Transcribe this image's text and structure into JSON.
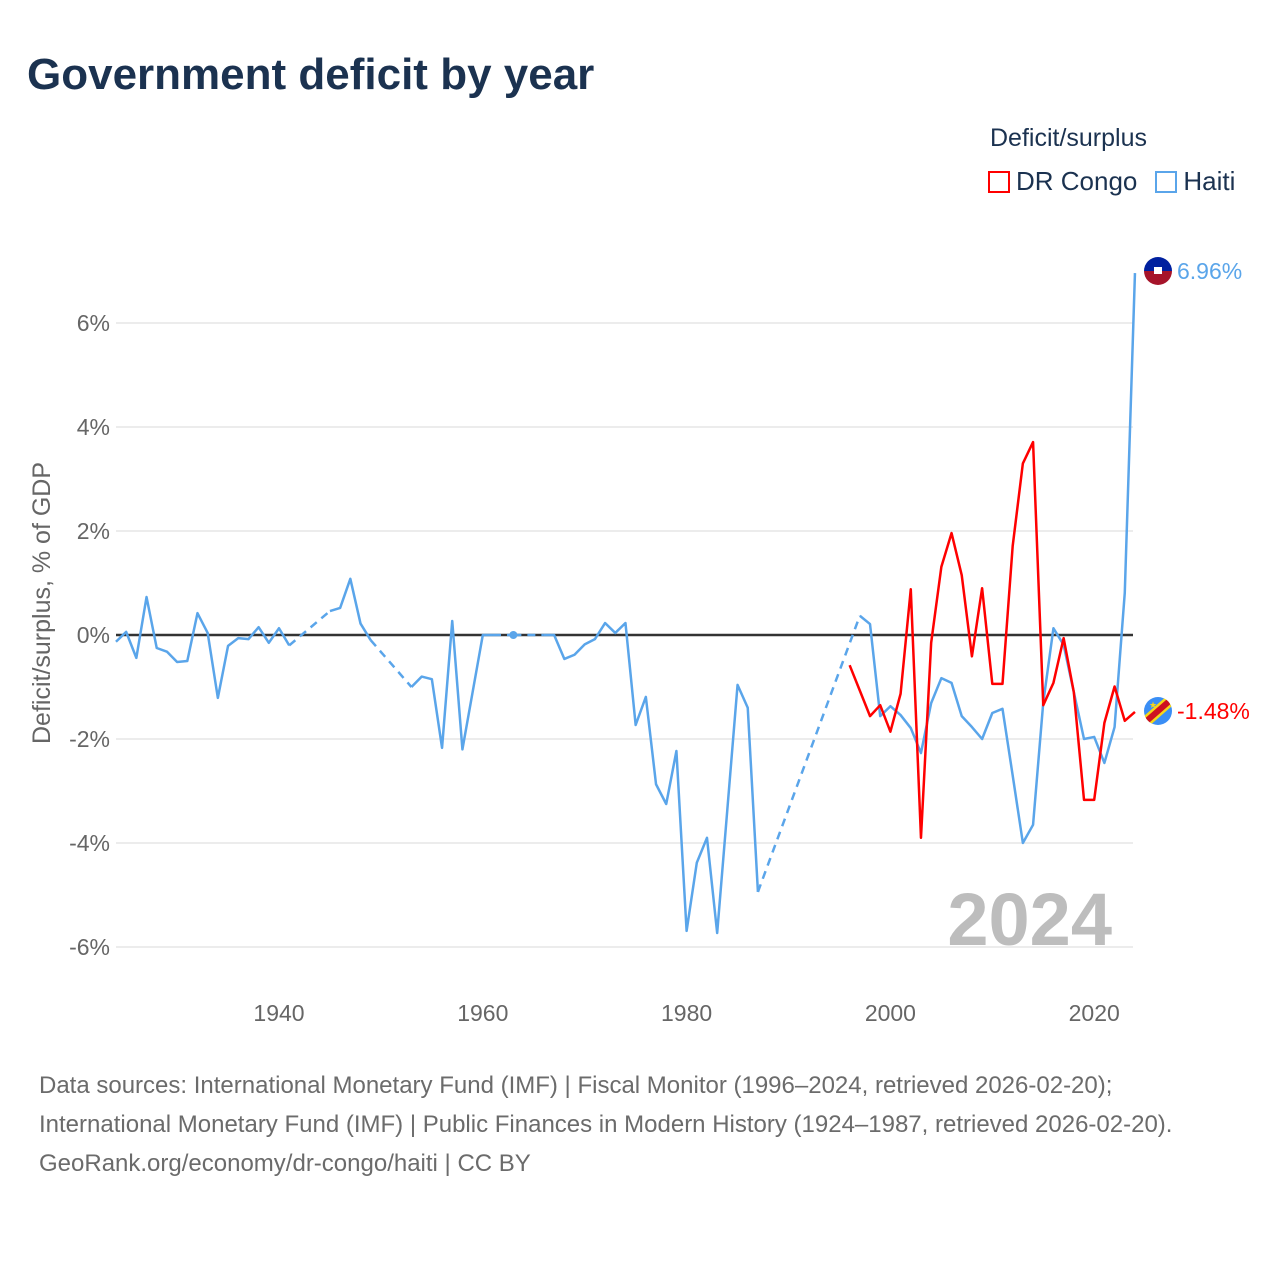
{
  "title": "Government deficit by year",
  "legend": {
    "title": "Deficit/surplus",
    "items": [
      {
        "label": "DR Congo",
        "color": "#ff0000"
      },
      {
        "label": "Haiti",
        "color": "#5aa5ea"
      }
    ]
  },
  "year_label": "2024",
  "end_labels": {
    "haiti": "6.96%",
    "drc": "-1.48%"
  },
  "footer": {
    "sources": "Data sources: International Monetary Fund (IMF) | Fiscal Monitor (1996–2024, retrieved 2026-02-20); International Monetary Fund (IMF) | Public Finances in Modern History (1924–1987, retrieved 2026-02-20).",
    "credit": "GeoRank.org/economy/dr-congo/haiti | CC BY"
  },
  "chart_data": {
    "type": "line",
    "title": "Government deficit by year",
    "xlabel": "",
    "ylabel": "Deficit/surplus, % of GDP",
    "xlim": [
      1924,
      2024
    ],
    "ylim": [
      -7,
      7
    ],
    "xticks": [
      1940,
      1960,
      1980,
      2000,
      2020
    ],
    "xtick_labels": [
      "1940",
      "1960",
      "1980",
      "2000",
      "2020"
    ],
    "yticks": [
      -6,
      -4,
      -2,
      0,
      2,
      4,
      6
    ],
    "ytick_labels": [
      "-6%",
      "-4%",
      "-2%",
      "0%",
      "2%",
      "4%",
      "6%"
    ],
    "grid": true,
    "legend_position": "top-right",
    "series": [
      {
        "name": "DR Congo",
        "key": "drc",
        "color": "#ff0000",
        "start_year": 1996,
        "values": [
          -0.58,
          -1.07,
          -1.56,
          -1.35,
          -1.86,
          -1.13,
          0.88,
          -3.9,
          -0.15,
          1.31,
          1.96,
          1.15,
          -0.41,
          0.9,
          -0.94,
          -0.94,
          1.71,
          3.3,
          3.71,
          -1.35,
          -0.92,
          -0.06,
          -1.1,
          -3.17,
          -3.17,
          -1.69,
          -0.99,
          -1.65,
          -1.48
        ]
      },
      {
        "name": "Haiti",
        "key": "haiti",
        "color": "#5aa5ea",
        "start_year": 1924,
        "values": [
          -0.13,
          0.06,
          -0.44,
          0.73,
          -0.25,
          -0.32,
          -0.52,
          -0.5,
          0.42,
          0.04,
          -1.21,
          -0.21,
          -0.06,
          -0.08,
          0.15,
          -0.15,
          0.13,
          -0.2,
          null,
          null,
          null,
          0.46,
          0.52,
          1.08,
          0.22,
          -0.1,
          null,
          null,
          null,
          -1.0,
          -0.8,
          -0.85,
          -2.17,
          0.27,
          -2.2,
          -1.1,
          0.0,
          0.0,
          null,
          0.0,
          null,
          null,
          0.0,
          0.0,
          -0.46,
          -0.38,
          -0.18,
          -0.08,
          0.23,
          0.04,
          0.23,
          -1.73,
          -1.19,
          -2.87,
          -3.25,
          -2.23,
          -5.69,
          -4.38,
          -3.9,
          -5.73,
          -3.35,
          -0.96,
          -1.4,
          -4.94,
          null,
          null,
          null,
          null,
          null,
          null,
          null,
          null,
          null,
          0.37,
          0.21,
          -1.56,
          -1.37,
          -1.54,
          -1.79,
          -2.27,
          -1.31,
          -0.83,
          -0.92,
          -1.56,
          -1.77,
          -2.0,
          -1.5,
          -1.42,
          -2.7,
          -4.0,
          -3.65,
          -1.3,
          0.13,
          -0.19,
          -1.1,
          -2.0,
          -1.96,
          -2.46,
          -1.77,
          0.81,
          6.96
        ]
      }
    ]
  }
}
